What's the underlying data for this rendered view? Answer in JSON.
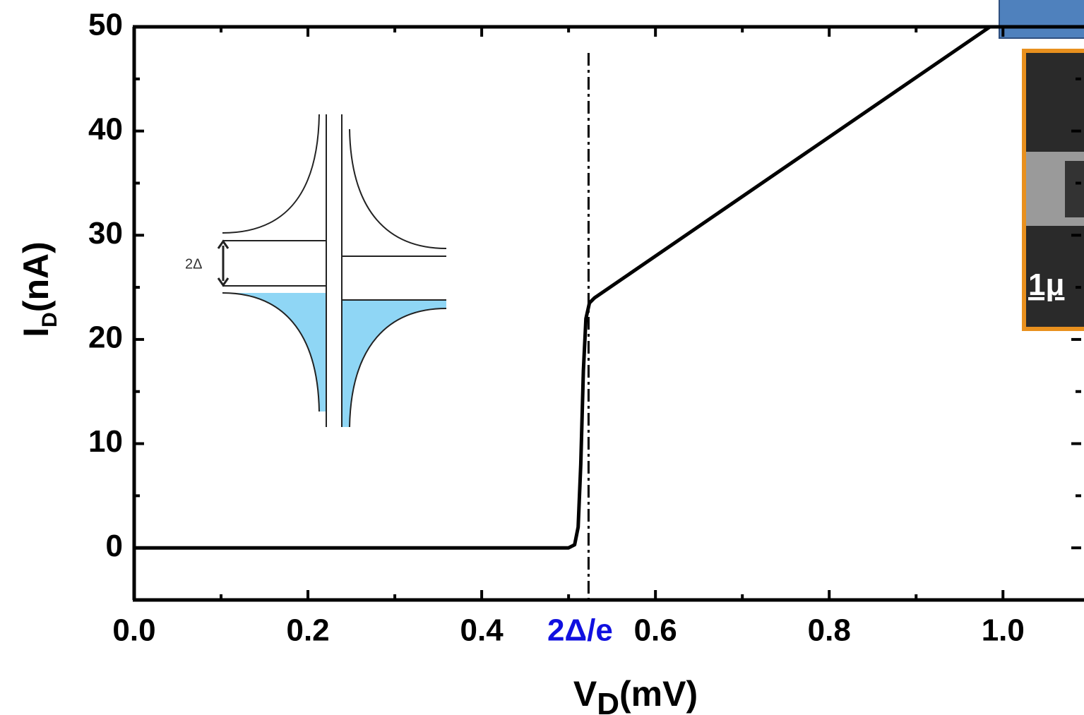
{
  "chart_data": {
    "type": "line",
    "x": [
      0,
      0.3,
      0.5,
      0.507,
      0.511,
      0.514,
      0.517,
      0.52,
      0.524,
      0.53,
      0.985
    ],
    "series": [
      {
        "name": "I_D",
        "color": "#000000",
        "values": [
          0,
          0,
          0,
          0.3,
          2,
          8,
          17,
          22,
          23.5,
          24,
          50
        ]
      }
    ],
    "xlim": [
      0,
      1.09
    ],
    "ylim": [
      -5,
      50
    ],
    "xticks": [
      {
        "value": 0,
        "label": "0.0"
      },
      0.2,
      0.4,
      0.6,
      0.8,
      {
        "value": 1,
        "label": "1.0"
      }
    ],
    "xminorticks": [
      0.1,
      0.3,
      0.5,
      0.7,
      0.9
    ],
    "yticks": [
      0,
      10,
      20,
      30,
      40,
      50
    ],
    "yminorticks": [
      -5,
      5,
      15,
      25,
      35,
      45
    ],
    "xlabel": {
      "main": "V",
      "sub": "D",
      "unit": "(mV)"
    },
    "ylabel": {
      "main": "I",
      "sub": "D",
      "unit": "(nA)"
    },
    "vline": {
      "x": 0.523,
      "label": "2Δ/e",
      "color": "#1010e0"
    },
    "inset_label": "2Δ",
    "image_label": "1μ"
  }
}
